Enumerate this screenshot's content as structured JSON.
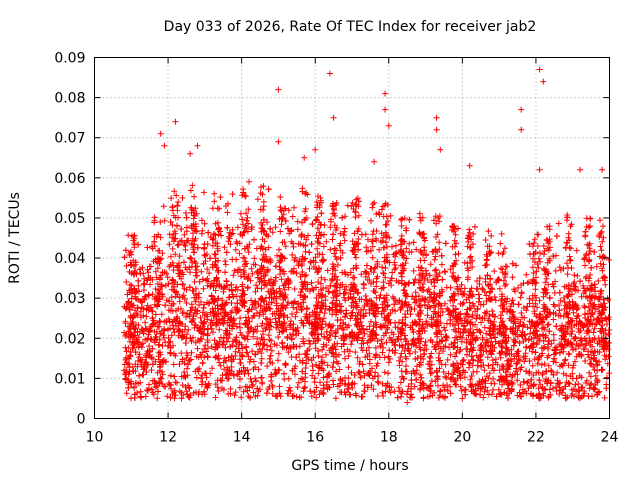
{
  "chart_data": {
    "type": "scatter",
    "title": "Day 033 of 2026, Rate Of TEC Index for receiver jab2",
    "xlabel": "GPS time / hours",
    "ylabel": "ROTI / TECUs",
    "xlim": [
      10,
      24
    ],
    "ylim": [
      0,
      0.09
    ],
    "x_ticks": [
      "10",
      "12",
      "14",
      "16",
      "18",
      "20",
      "22",
      "24"
    ],
    "y_ticks": [
      "0",
      "0.01",
      "0.02",
      "0.03",
      "0.04",
      "0.05",
      "0.06",
      "0.07",
      "0.08",
      "0.09"
    ],
    "grid": true,
    "marker": "plus",
    "series_color": "#ff0000",
    "x_range_observed": [
      10.8,
      24.0
    ],
    "envelope": [
      {
        "x": 10.8,
        "median": 0.019,
        "upper": 0.035
      },
      {
        "x": 11.5,
        "median": 0.018,
        "upper": 0.04
      },
      {
        "x": 12.0,
        "median": 0.02,
        "upper": 0.045
      },
      {
        "x": 12.5,
        "median": 0.02,
        "upper": 0.048
      },
      {
        "x": 13.0,
        "median": 0.021,
        "upper": 0.045
      },
      {
        "x": 13.5,
        "median": 0.022,
        "upper": 0.045
      },
      {
        "x": 14.0,
        "median": 0.022,
        "upper": 0.046
      },
      {
        "x": 14.5,
        "median": 0.022,
        "upper": 0.046
      },
      {
        "x": 15.0,
        "median": 0.023,
        "upper": 0.047
      },
      {
        "x": 15.5,
        "median": 0.022,
        "upper": 0.046
      },
      {
        "x": 16.0,
        "median": 0.021,
        "upper": 0.045
      },
      {
        "x": 16.5,
        "median": 0.02,
        "upper": 0.044
      },
      {
        "x": 17.0,
        "median": 0.02,
        "upper": 0.043
      },
      {
        "x": 17.5,
        "median": 0.02,
        "upper": 0.044
      },
      {
        "x": 18.0,
        "median": 0.019,
        "upper": 0.042
      },
      {
        "x": 18.5,
        "median": 0.019,
        "upper": 0.04
      },
      {
        "x": 19.0,
        "median": 0.018,
        "upper": 0.04
      },
      {
        "x": 19.5,
        "median": 0.018,
        "upper": 0.038
      },
      {
        "x": 20.0,
        "median": 0.017,
        "upper": 0.036
      },
      {
        "x": 20.5,
        "median": 0.017,
        "upper": 0.036
      },
      {
        "x": 21.0,
        "median": 0.016,
        "upper": 0.035
      },
      {
        "x": 21.5,
        "median": 0.016,
        "upper": 0.032
      },
      {
        "x": 22.0,
        "median": 0.017,
        "upper": 0.036
      },
      {
        "x": 22.5,
        "median": 0.017,
        "upper": 0.038
      },
      {
        "x": 23.0,
        "median": 0.018,
        "upper": 0.04
      },
      {
        "x": 23.5,
        "median": 0.018,
        "upper": 0.04
      },
      {
        "x": 24.0,
        "median": 0.017,
        "upper": 0.038
      }
    ],
    "outliers": [
      {
        "x": 11.8,
        "y": 0.071
      },
      {
        "x": 11.9,
        "y": 0.068
      },
      {
        "x": 12.2,
        "y": 0.074
      },
      {
        "x": 12.6,
        "y": 0.066
      },
      {
        "x": 12.8,
        "y": 0.068
      },
      {
        "x": 14.2,
        "y": 0.059
      },
      {
        "x": 15.0,
        "y": 0.082
      },
      {
        "x": 15.0,
        "y": 0.069
      },
      {
        "x": 15.7,
        "y": 0.065
      },
      {
        "x": 16.0,
        "y": 0.067
      },
      {
        "x": 16.4,
        "y": 0.086
      },
      {
        "x": 16.5,
        "y": 0.075
      },
      {
        "x": 17.6,
        "y": 0.064
      },
      {
        "x": 17.9,
        "y": 0.081
      },
      {
        "x": 17.9,
        "y": 0.077
      },
      {
        "x": 18.0,
        "y": 0.073
      },
      {
        "x": 19.3,
        "y": 0.075
      },
      {
        "x": 19.3,
        "y": 0.072
      },
      {
        "x": 19.4,
        "y": 0.067
      },
      {
        "x": 20.2,
        "y": 0.063
      },
      {
        "x": 21.6,
        "y": 0.077
      },
      {
        "x": 21.6,
        "y": 0.072
      },
      {
        "x": 22.1,
        "y": 0.087
      },
      {
        "x": 22.2,
        "y": 0.084
      },
      {
        "x": 22.1,
        "y": 0.062
      },
      {
        "x": 23.2,
        "y": 0.062
      },
      {
        "x": 23.8,
        "y": 0.062
      },
      {
        "x": 18.5,
        "y": 0.004
      },
      {
        "x": 11.1,
        "y": 0.006
      },
      {
        "x": 20.0,
        "y": 0.005
      },
      {
        "x": 23.2,
        "y": 0.005
      }
    ]
  }
}
